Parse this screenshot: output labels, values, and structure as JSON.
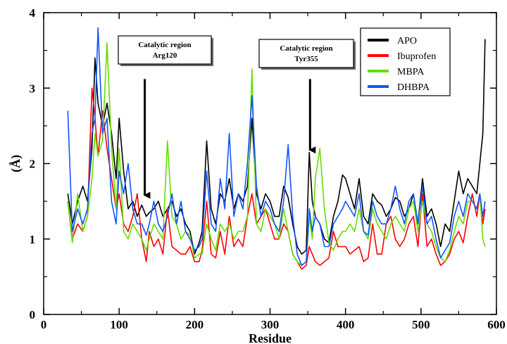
{
  "chart_data": {
    "type": "line",
    "xlabel": "Residue",
    "ylabel": "(Å)",
    "xlim": [
      0,
      600
    ],
    "ylim": [
      0,
      4
    ],
    "xticks": [
      0,
      100,
      200,
      300,
      400,
      500,
      600
    ],
    "yticks": [
      0,
      1,
      2,
      3,
      4
    ],
    "legend_position": "top-right",
    "annotations": [
      {
        "line1": "Catalytic region",
        "line2": "Arg120",
        "arrow_x": 134,
        "arrow_y_from": 3.12,
        "arrow_y_to": 1.58
      },
      {
        "line1": "Catalytic region",
        "line2": "Tyr355",
        "arrow_x": 353,
        "arrow_y_from": 3.12,
        "arrow_y_to": 2.18
      }
    ],
    "series": [
      {
        "name": "APO",
        "color": "#000000",
        "x": [
          32,
          38,
          45,
          52,
          58,
          64,
          68,
          72,
          78,
          84,
          90,
          96,
          100,
          106,
          112,
          118,
          124,
          130,
          136,
          140,
          146,
          152,
          158,
          164,
          170,
          176,
          182,
          188,
          194,
          200,
          206,
          210,
          216,
          222,
          228,
          234,
          240,
          246,
          252,
          258,
          264,
          270,
          276,
          282,
          288,
          294,
          300,
          306,
          312,
          318,
          324,
          330,
          336,
          342,
          348,
          352,
          356,
          360,
          366,
          372,
          378,
          384,
          390,
          396,
          400,
          406,
          412,
          418,
          424,
          430,
          436,
          442,
          448,
          454,
          460,
          466,
          472,
          478,
          484,
          490,
          496,
          502,
          508,
          514,
          520,
          526,
          532,
          538,
          544,
          550,
          556,
          562,
          568,
          574,
          578,
          582,
          585
        ],
        "y": [
          1.6,
          1.2,
          1.5,
          1.7,
          1.5,
          2.2,
          3.4,
          2.8,
          2.5,
          2.8,
          2.4,
          1.8,
          2.6,
          1.9,
          1.4,
          1.5,
          1.3,
          1.45,
          1.3,
          1.35,
          1.4,
          1.5,
          1.3,
          1.4,
          1.5,
          1.3,
          1.4,
          1.2,
          1.1,
          0.8,
          0.95,
          1.1,
          2.3,
          1.4,
          1.2,
          1.6,
          1.5,
          1.8,
          1.4,
          1.6,
          1.5,
          1.7,
          2.6,
          1.6,
          1.4,
          1.6,
          1.5,
          1.3,
          1.3,
          1.7,
          1.55,
          1.2,
          0.9,
          0.8,
          0.85,
          2.15,
          1.5,
          1.3,
          1.2,
          1.0,
          0.95,
          1.3,
          1.5,
          1.85,
          1.8,
          1.6,
          1.4,
          1.8,
          1.3,
          1.2,
          1.6,
          1.5,
          1.45,
          1.3,
          1.4,
          1.55,
          1.5,
          1.3,
          1.4,
          1.6,
          1.2,
          1.8,
          1.3,
          1.4,
          1.2,
          0.9,
          1.2,
          1.1,
          1.5,
          1.9,
          1.6,
          1.8,
          1.7,
          1.6,
          2.0,
          2.4,
          3.65
        ]
      },
      {
        "name": "Ibuprofen",
        "color": "#ff0000",
        "x": [
          32,
          38,
          45,
          52,
          58,
          64,
          68,
          72,
          78,
          84,
          90,
          96,
          100,
          106,
          112,
          118,
          124,
          130,
          136,
          140,
          146,
          152,
          158,
          164,
          170,
          176,
          182,
          188,
          194,
          200,
          206,
          210,
          216,
          222,
          228,
          234,
          240,
          246,
          252,
          258,
          264,
          270,
          276,
          282,
          288,
          294,
          300,
          306,
          312,
          318,
          324,
          330,
          336,
          342,
          348,
          352,
          356,
          360,
          366,
          372,
          378,
          384,
          390,
          396,
          400,
          406,
          412,
          418,
          424,
          430,
          436,
          442,
          448,
          454,
          460,
          466,
          472,
          478,
          484,
          490,
          496,
          502,
          508,
          514,
          520,
          526,
          532,
          538,
          544,
          550,
          556,
          562,
          568,
          574,
          578,
          582,
          585
        ],
        "y": [
          1.5,
          1.0,
          1.2,
          1.1,
          1.3,
          3.0,
          2.6,
          2.1,
          2.7,
          2.2,
          1.8,
          1.4,
          1.6,
          1.2,
          1.1,
          1.3,
          1.6,
          1.0,
          0.7,
          1.1,
          0.9,
          1.0,
          0.8,
          1.4,
          0.9,
          0.85,
          0.8,
          0.8,
          0.9,
          0.7,
          0.7,
          0.85,
          1.5,
          0.8,
          0.75,
          1.1,
          0.8,
          1.3,
          0.9,
          1.0,
          0.9,
          1.3,
          1.6,
          1.2,
          1.3,
          1.4,
          1.2,
          1.0,
          1.0,
          1.2,
          1.1,
          0.8,
          0.7,
          0.6,
          0.65,
          0.9,
          0.8,
          0.7,
          0.65,
          0.7,
          0.75,
          1.1,
          0.9,
          0.9,
          0.9,
          0.8,
          0.85,
          0.9,
          0.7,
          0.75,
          1.2,
          0.8,
          0.8,
          1.2,
          1.3,
          1.0,
          0.9,
          1.0,
          1.2,
          1.3,
          0.9,
          1.6,
          0.9,
          1.0,
          0.8,
          0.65,
          0.7,
          0.8,
          1.0,
          1.1,
          0.95,
          1.3,
          1.6,
          1.3,
          1.6,
          1.2,
          1.4
        ]
      },
      {
        "name": "MBPA",
        "color": "#66dd00",
        "x": [
          32,
          38,
          45,
          52,
          58,
          64,
          68,
          72,
          78,
          84,
          90,
          96,
          100,
          106,
          112,
          118,
          124,
          130,
          136,
          140,
          146,
          152,
          158,
          164,
          170,
          176,
          182,
          188,
          194,
          200,
          206,
          210,
          216,
          222,
          228,
          234,
          240,
          246,
          252,
          258,
          264,
          270,
          276,
          282,
          288,
          294,
          300,
          306,
          312,
          318,
          324,
          330,
          336,
          342,
          348,
          352,
          356,
          360,
          366,
          372,
          378,
          384,
          390,
          396,
          400,
          406,
          412,
          418,
          424,
          430,
          436,
          442,
          448,
          454,
          460,
          466,
          472,
          478,
          484,
          490,
          496,
          502,
          508,
          514,
          520,
          526,
          532,
          538,
          544,
          550,
          556,
          562,
          568,
          574,
          578,
          582,
          585
        ],
        "y": [
          1.5,
          0.95,
          1.6,
          1.1,
          1.3,
          1.8,
          2.4,
          2.1,
          2.3,
          3.6,
          2.2,
          1.4,
          2.2,
          1.1,
          1.0,
          1.2,
          1.1,
          1.0,
          0.85,
          1.0,
          1.2,
          1.1,
          1.0,
          2.3,
          1.3,
          1.2,
          1.0,
          1.1,
          1.05,
          0.75,
          0.8,
          0.8,
          1.2,
          1.0,
          0.85,
          1.2,
          1.1,
          1.2,
          1.0,
          1.1,
          1.1,
          1.3,
          3.25,
          1.2,
          1.1,
          1.4,
          1.3,
          1.2,
          1.0,
          1.4,
          1.1,
          0.8,
          0.7,
          0.65,
          0.7,
          1.3,
          1.0,
          1.8,
          2.2,
          1.4,
          0.95,
          0.85,
          1.0,
          1.1,
          1.1,
          1.2,
          1.1,
          1.4,
          1.1,
          1.0,
          1.4,
          1.2,
          1.1,
          1.0,
          1.2,
          1.3,
          1.2,
          1.1,
          1.4,
          1.5,
          1.1,
          1.5,
          1.2,
          1.1,
          0.9,
          0.75,
          0.7,
          0.85,
          1.1,
          1.3,
          1.2,
          1.5,
          1.5,
          1.4,
          1.6,
          1.0,
          0.9
        ]
      },
      {
        "name": "DHBPA",
        "color": "#1155ff",
        "x": [
          32,
          38,
          45,
          52,
          58,
          64,
          68,
          72,
          78,
          84,
          90,
          96,
          100,
          106,
          112,
          118,
          124,
          130,
          136,
          140,
          146,
          152,
          158,
          164,
          170,
          176,
          182,
          188,
          194,
          200,
          206,
          210,
          216,
          222,
          228,
          234,
          240,
          246,
          252,
          258,
          264,
          270,
          276,
          282,
          288,
          294,
          300,
          306,
          312,
          318,
          324,
          330,
          336,
          342,
          348,
          352,
          356,
          360,
          366,
          372,
          378,
          384,
          390,
          396,
          400,
          406,
          412,
          418,
          424,
          430,
          436,
          442,
          448,
          454,
          460,
          466,
          472,
          478,
          484,
          490,
          496,
          502,
          508,
          514,
          520,
          526,
          532,
          538,
          544,
          550,
          556,
          562,
          568,
          574,
          578,
          582,
          585
        ],
        "y": [
          2.7,
          1.1,
          1.4,
          1.2,
          1.4,
          2.4,
          2.6,
          3.8,
          2.4,
          2.6,
          1.5,
          1.2,
          1.9,
          1.6,
          2.0,
          1.4,
          1.2,
          1.2,
          1.05,
          1.2,
          1.5,
          1.2,
          1.1,
          1.3,
          1.6,
          1.2,
          1.5,
          1.1,
          1.0,
          0.85,
          0.9,
          1.0,
          1.9,
          1.2,
          1.1,
          1.8,
          1.4,
          2.4,
          1.3,
          1.6,
          1.4,
          2.0,
          2.9,
          1.7,
          1.3,
          1.5,
          1.4,
          1.2,
          1.1,
          1.5,
          2.25,
          1.3,
          0.8,
          0.65,
          0.7,
          1.4,
          1.1,
          1.3,
          1.2,
          0.9,
          0.9,
          1.2,
          1.3,
          1.4,
          1.5,
          1.4,
          1.3,
          1.6,
          1.1,
          1.05,
          1.5,
          1.3,
          1.2,
          1.2,
          1.4,
          1.7,
          1.4,
          1.2,
          1.5,
          1.6,
          1.2,
          1.7,
          1.2,
          1.3,
          1.0,
          0.75,
          0.85,
          0.95,
          1.3,
          1.5,
          1.3,
          1.6,
          1.5,
          1.4,
          1.6,
          1.3,
          1.5
        ]
      }
    ]
  }
}
